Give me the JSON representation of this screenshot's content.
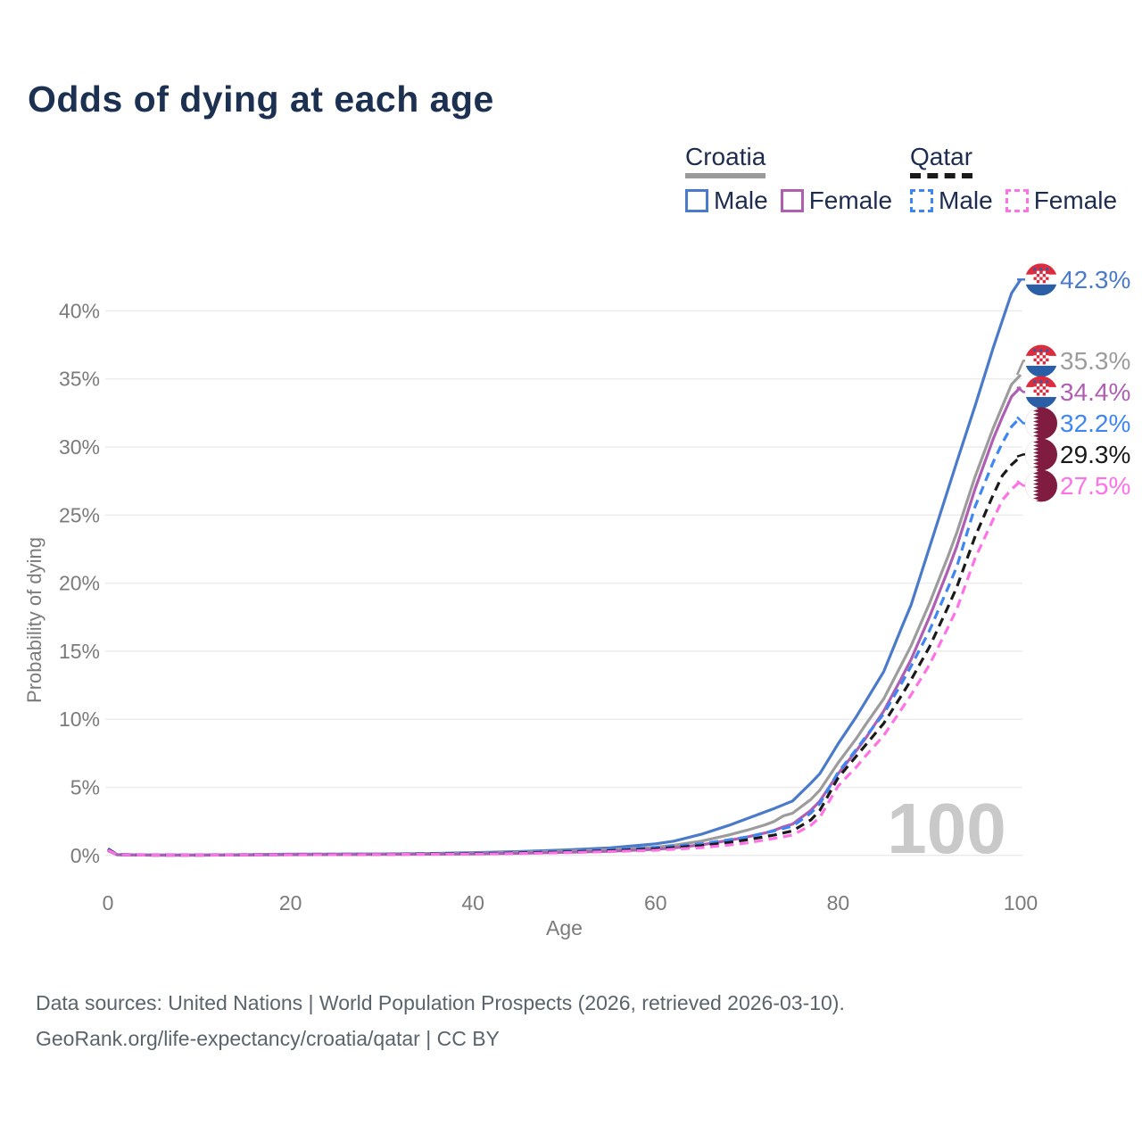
{
  "title": "Odds of dying at each age",
  "legend": {
    "groups": [
      {
        "name": "Croatia",
        "underline_color": "#9a9a9a",
        "underline_style": "solid",
        "items": [
          {
            "label": "Male",
            "color": "#4a7ac9",
            "line_style": "solid"
          },
          {
            "label": "Female",
            "color": "#ae5fb2",
            "line_style": "solid"
          }
        ]
      },
      {
        "name": "Qatar",
        "underline_color": "#1a1a1a",
        "underline_style": "dashed",
        "items": [
          {
            "label": "Male",
            "color": "#3f86f2",
            "line_style": "dashed"
          },
          {
            "label": "Female",
            "color": "#ff72e5",
            "line_style": "dashed"
          }
        ]
      }
    ]
  },
  "colors": {
    "grid": "#ececec",
    "axis_text": "#7b7b7b",
    "watermark": "#c9c9c9",
    "flag_croatia_red": "#dd2c3e",
    "flag_croatia_blue": "#2a5fa5",
    "flag_white": "#ffffff",
    "flag_qatar_maroon": "#7f1c3f"
  },
  "chart_data": {
    "type": "line",
    "title": "Odds of dying at each age",
    "xlabel": "Age",
    "ylabel": "Probability of dying",
    "xlim": [
      0,
      100
    ],
    "ylim": [
      0,
      42.5
    ],
    "x_ticks": [
      0,
      20,
      40,
      60,
      80,
      100
    ],
    "y_tick_values": [
      0,
      5,
      10,
      15,
      20,
      25,
      30,
      35,
      40
    ],
    "y_tick_labels": [
      "0%",
      "5%",
      "10%",
      "15%",
      "20%",
      "25%",
      "30%",
      "35%",
      "40%"
    ],
    "grid": "horizontal",
    "legend_position": "top-right",
    "watermark": "100",
    "series": [
      {
        "name": "Croatia Male",
        "country": "Croatia",
        "sex": "Male",
        "color": "#4a7ac9",
        "line_style": "solid",
        "flag": "croatia",
        "end_label": "42.3%",
        "points": [
          [
            0,
            0.45
          ],
          [
            1,
            0.06
          ],
          [
            5,
            0.03
          ],
          [
            10,
            0.03
          ],
          [
            15,
            0.05
          ],
          [
            20,
            0.09
          ],
          [
            25,
            0.1
          ],
          [
            30,
            0.11
          ],
          [
            35,
            0.14
          ],
          [
            40,
            0.2
          ],
          [
            45,
            0.28
          ],
          [
            50,
            0.4
          ],
          [
            55,
            0.55
          ],
          [
            60,
            0.85
          ],
          [
            62,
            1.05
          ],
          [
            65,
            1.55
          ],
          [
            68,
            2.2
          ],
          [
            70,
            2.7
          ],
          [
            72,
            3.2
          ],
          [
            73,
            3.45
          ],
          [
            75,
            4.0
          ],
          [
            77,
            5.3
          ],
          [
            78,
            6.0
          ],
          [
            80,
            8.2
          ],
          [
            82,
            10.2
          ],
          [
            83,
            11.3
          ],
          [
            85,
            13.5
          ],
          [
            87,
            16.8
          ],
          [
            88,
            18.4
          ],
          [
            90,
            22.6
          ],
          [
            92,
            26.8
          ],
          [
            93,
            28.9
          ],
          [
            95,
            33.0
          ],
          [
            97,
            37.3
          ],
          [
            98,
            39.3
          ],
          [
            99,
            41.3
          ],
          [
            100,
            42.3
          ]
        ]
      },
      {
        "name": "Croatia Total",
        "country": "Croatia",
        "sex": "Both",
        "color": "#9c9c9c",
        "line_style": "solid",
        "flag": "croatia",
        "end_label": "35.3%",
        "points": [
          [
            0,
            0.4
          ],
          [
            1,
            0.05
          ],
          [
            5,
            0.02
          ],
          [
            10,
            0.02
          ],
          [
            15,
            0.04
          ],
          [
            20,
            0.07
          ],
          [
            25,
            0.08
          ],
          [
            30,
            0.09
          ],
          [
            35,
            0.11
          ],
          [
            40,
            0.15
          ],
          [
            45,
            0.22
          ],
          [
            50,
            0.31
          ],
          [
            55,
            0.42
          ],
          [
            60,
            0.6
          ],
          [
            62,
            0.75
          ],
          [
            65,
            1.05
          ],
          [
            68,
            1.5
          ],
          [
            70,
            1.85
          ],
          [
            72,
            2.25
          ],
          [
            73,
            2.5
          ],
          [
            74,
            2.9
          ],
          [
            75,
            3.1
          ],
          [
            77,
            4.1
          ],
          [
            78,
            4.8
          ],
          [
            80,
            6.8
          ],
          [
            82,
            8.6
          ],
          [
            83,
            9.6
          ],
          [
            85,
            11.5
          ],
          [
            87,
            14.1
          ],
          [
            88,
            15.4
          ],
          [
            90,
            18.5
          ],
          [
            92,
            21.9
          ],
          [
            93,
            23.7
          ],
          [
            95,
            27.8
          ],
          [
            97,
            31.4
          ],
          [
            98,
            33.0
          ],
          [
            99,
            34.6
          ],
          [
            100,
            35.3
          ]
        ]
      },
      {
        "name": "Croatia Female",
        "country": "Croatia",
        "sex": "Female",
        "color": "#ae5fb2",
        "line_style": "solid",
        "flag": "croatia",
        "end_label": "34.4%",
        "points": [
          [
            0,
            0.35
          ],
          [
            1,
            0.05
          ],
          [
            5,
            0.02
          ],
          [
            10,
            0.02
          ],
          [
            15,
            0.03
          ],
          [
            20,
            0.05
          ],
          [
            25,
            0.06
          ],
          [
            30,
            0.07
          ],
          [
            35,
            0.09
          ],
          [
            40,
            0.11
          ],
          [
            45,
            0.16
          ],
          [
            50,
            0.23
          ],
          [
            55,
            0.31
          ],
          [
            60,
            0.45
          ],
          [
            62,
            0.55
          ],
          [
            65,
            0.78
          ],
          [
            68,
            1.1
          ],
          [
            70,
            1.35
          ],
          [
            72,
            1.65
          ],
          [
            73,
            1.85
          ],
          [
            74,
            2.1
          ],
          [
            75,
            2.3
          ],
          [
            77,
            3.3
          ],
          [
            78,
            4.0
          ],
          [
            80,
            6.0
          ],
          [
            82,
            7.7
          ],
          [
            83,
            8.6
          ],
          [
            85,
            10.6
          ],
          [
            87,
            13.1
          ],
          [
            88,
            14.4
          ],
          [
            90,
            17.5
          ],
          [
            92,
            20.9
          ],
          [
            93,
            22.7
          ],
          [
            95,
            26.9
          ],
          [
            97,
            30.6
          ],
          [
            98,
            32.2
          ],
          [
            99,
            33.7
          ],
          [
            100,
            34.4
          ]
        ]
      },
      {
        "name": "Qatar Male",
        "country": "Qatar",
        "sex": "Male",
        "color": "#3f86f2",
        "line_style": "dashed",
        "flag": "qatar",
        "end_label": "32.2%",
        "points": [
          [
            0,
            0.5
          ],
          [
            1,
            0.07
          ],
          [
            5,
            0.03
          ],
          [
            10,
            0.03
          ],
          [
            15,
            0.05
          ],
          [
            20,
            0.08
          ],
          [
            25,
            0.09
          ],
          [
            30,
            0.1
          ],
          [
            35,
            0.12
          ],
          [
            40,
            0.15
          ],
          [
            45,
            0.21
          ],
          [
            50,
            0.3
          ],
          [
            55,
            0.42
          ],
          [
            60,
            0.58
          ],
          [
            65,
            0.85
          ],
          [
            68,
            1.15
          ],
          [
            70,
            1.35
          ],
          [
            73,
            1.8
          ],
          [
            75,
            2.15
          ],
          [
            77,
            3.1
          ],
          [
            78,
            3.8
          ],
          [
            80,
            6.1
          ],
          [
            82,
            7.8
          ],
          [
            83,
            8.7
          ],
          [
            85,
            10.4
          ],
          [
            87,
            12.7
          ],
          [
            88,
            13.9
          ],
          [
            90,
            16.5
          ],
          [
            92,
            19.6
          ],
          [
            93,
            21.2
          ],
          [
            95,
            25.6
          ],
          [
            97,
            28.9
          ],
          [
            98,
            30.3
          ],
          [
            99,
            31.5
          ],
          [
            100,
            32.2
          ]
        ]
      },
      {
        "name": "Qatar Total",
        "country": "Qatar",
        "sex": "Both",
        "color": "#1a1a1a",
        "line_style": "dashed",
        "flag": "qatar",
        "end_label": "29.3%",
        "points": [
          [
            0,
            0.45
          ],
          [
            1,
            0.06
          ],
          [
            5,
            0.02
          ],
          [
            10,
            0.02
          ],
          [
            15,
            0.04
          ],
          [
            20,
            0.06
          ],
          [
            25,
            0.07
          ],
          [
            30,
            0.08
          ],
          [
            35,
            0.1
          ],
          [
            40,
            0.13
          ],
          [
            45,
            0.18
          ],
          [
            50,
            0.25
          ],
          [
            55,
            0.35
          ],
          [
            60,
            0.48
          ],
          [
            65,
            0.72
          ],
          [
            68,
            0.95
          ],
          [
            70,
            1.15
          ],
          [
            73,
            1.5
          ],
          [
            75,
            1.8
          ],
          [
            77,
            2.6
          ],
          [
            78,
            3.3
          ],
          [
            80,
            5.7
          ],
          [
            82,
            7.3
          ],
          [
            83,
            8.1
          ],
          [
            85,
            9.7
          ],
          [
            87,
            11.8
          ],
          [
            88,
            12.9
          ],
          [
            90,
            15.3
          ],
          [
            92,
            18.2
          ],
          [
            93,
            19.7
          ],
          [
            95,
            23.4
          ],
          [
            97,
            26.5
          ],
          [
            98,
            27.9
          ],
          [
            99,
            28.7
          ],
          [
            100,
            29.3
          ]
        ]
      },
      {
        "name": "Qatar Female",
        "country": "Qatar",
        "sex": "Female",
        "color": "#ff72e5",
        "line_style": "dashed",
        "flag": "qatar",
        "end_label": "27.5%",
        "points": [
          [
            0,
            0.4
          ],
          [
            1,
            0.05
          ],
          [
            5,
            0.02
          ],
          [
            10,
            0.02
          ],
          [
            15,
            0.03
          ],
          [
            20,
            0.05
          ],
          [
            25,
            0.06
          ],
          [
            30,
            0.07
          ],
          [
            35,
            0.08
          ],
          [
            40,
            0.1
          ],
          [
            45,
            0.14
          ],
          [
            50,
            0.2
          ],
          [
            55,
            0.28
          ],
          [
            60,
            0.38
          ],
          [
            65,
            0.57
          ],
          [
            68,
            0.76
          ],
          [
            70,
            0.92
          ],
          [
            73,
            1.25
          ],
          [
            75,
            1.5
          ],
          [
            77,
            2.2
          ],
          [
            78,
            2.8
          ],
          [
            80,
            5.1
          ],
          [
            82,
            6.5
          ],
          [
            83,
            7.3
          ],
          [
            85,
            8.8
          ],
          [
            87,
            10.8
          ],
          [
            88,
            11.8
          ],
          [
            90,
            14.0
          ],
          [
            92,
            16.7
          ],
          [
            93,
            18.1
          ],
          [
            95,
            21.8
          ],
          [
            97,
            24.7
          ],
          [
            98,
            26.1
          ],
          [
            99,
            26.9
          ],
          [
            100,
            27.5
          ]
        ]
      }
    ]
  },
  "footer": {
    "line1": "Data sources: United Nations | World Population Prospects (2026, retrieved 2026-03-10).",
    "line2": "GeoRank.org/life-expectancy/croatia/qatar | CC BY"
  }
}
